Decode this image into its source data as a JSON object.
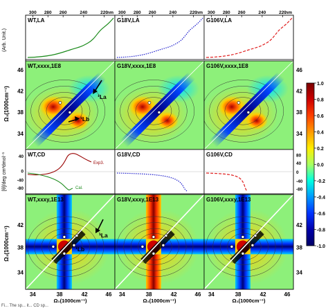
{
  "top_axis": {
    "unit": "nm",
    "ticks": [
      "300",
      "280",
      "260",
      "240",
      "220"
    ],
    "ylabel": "(Arb. Unit.)"
  },
  "row1": {
    "titles": [
      "WT,LA",
      "G18V,LA",
      "G106V,LA"
    ],
    "colors": [
      "#1a8a1a",
      "#1a1acc",
      "#e02020"
    ]
  },
  "row2": {
    "titles": [
      "WT,xxxx,1E8",
      "G18V,xxxx,1E8",
      "G106V,xxxx,1E8"
    ],
    "annotations": [
      "¹La",
      "¹Lb"
    ],
    "yticks": [
      "46",
      "42",
      "38",
      "34"
    ]
  },
  "row3": {
    "titles": [
      "WT,CD",
      "G18V,CD",
      "G106V,CD"
    ],
    "ylabel": "[θ]/deg cm²dmol⁻¹",
    "left_yticks": [
      "40",
      "0",
      "-40",
      "-80"
    ],
    "right_yticks": [
      "80",
      "40",
      "0",
      "-40",
      "-80"
    ],
    "annotations": [
      "Exp3.",
      "Cal."
    ]
  },
  "row4": {
    "titles": [
      "WT,xxxy,1E13",
      "G18V,xxxy,1E13",
      "G106V,xxxy,1E13"
    ],
    "annotations": [
      "¹La",
      "¹Lb"
    ],
    "yticks": [
      "42",
      "38",
      "34"
    ]
  },
  "y_axis_label": "Ω₃(1000cm⁻¹)",
  "x_axis": {
    "ticks": [
      "34",
      "38",
      "42",
      "46"
    ],
    "label": "Ω₁(1000cm⁻¹)"
  },
  "colorbar": {
    "ticks": [
      "1.0",
      "0.8",
      "0.6",
      "0.4",
      "0.2",
      "0.0",
      "-0.2",
      "-0.4",
      "-0.6",
      "-0.8",
      "-1.0"
    ],
    "colors": [
      "#7a0000",
      "#cc0000",
      "#ff4000",
      "#ff9900",
      "#ffee00",
      "#99ff66",
      "#00ffff",
      "#0099ff",
      "#0033ff",
      "#0000aa",
      "#000066"
    ]
  },
  "caption": "Fi... The sp... it... CD sp..."
}
